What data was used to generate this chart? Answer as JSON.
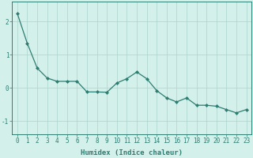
{
  "x": [
    0,
    1,
    2,
    3,
    4,
    5,
    6,
    7,
    8,
    9,
    10,
    11,
    12,
    13,
    14,
    15,
    16,
    17,
    18,
    19,
    20,
    21,
    22,
    23
  ],
  "y": [
    2.25,
    1.35,
    0.6,
    0.3,
    0.2,
    0.2,
    0.2,
    -0.12,
    -0.12,
    -0.13,
    0.15,
    0.28,
    0.48,
    0.28,
    -0.08,
    -0.3,
    -0.42,
    -0.3,
    -0.52,
    -0.52,
    -0.55,
    -0.65,
    -0.75,
    -0.65
  ],
  "line_color": "#2e7d72",
  "marker": "D",
  "marker_size": 2,
  "bg_color": "#d4f0eb",
  "grid_color": "#aad4cc",
  "xlabel": "Humidex (Indice chaleur)",
  "xlim": [
    -0.5,
    23.5
  ],
  "ylim": [
    -1.4,
    2.6
  ],
  "yticks": [
    -1,
    0,
    1,
    2
  ],
  "xticks": [
    0,
    1,
    2,
    3,
    4,
    5,
    6,
    7,
    8,
    9,
    10,
    11,
    12,
    13,
    14,
    15,
    16,
    17,
    18,
    19,
    20,
    21,
    22,
    23
  ],
  "xlabel_fontsize": 6.5,
  "tick_fontsize": 5.5,
  "tick_color": "#2e7d72",
  "axis_color": "#2e7d72",
  "linewidth": 0.9
}
